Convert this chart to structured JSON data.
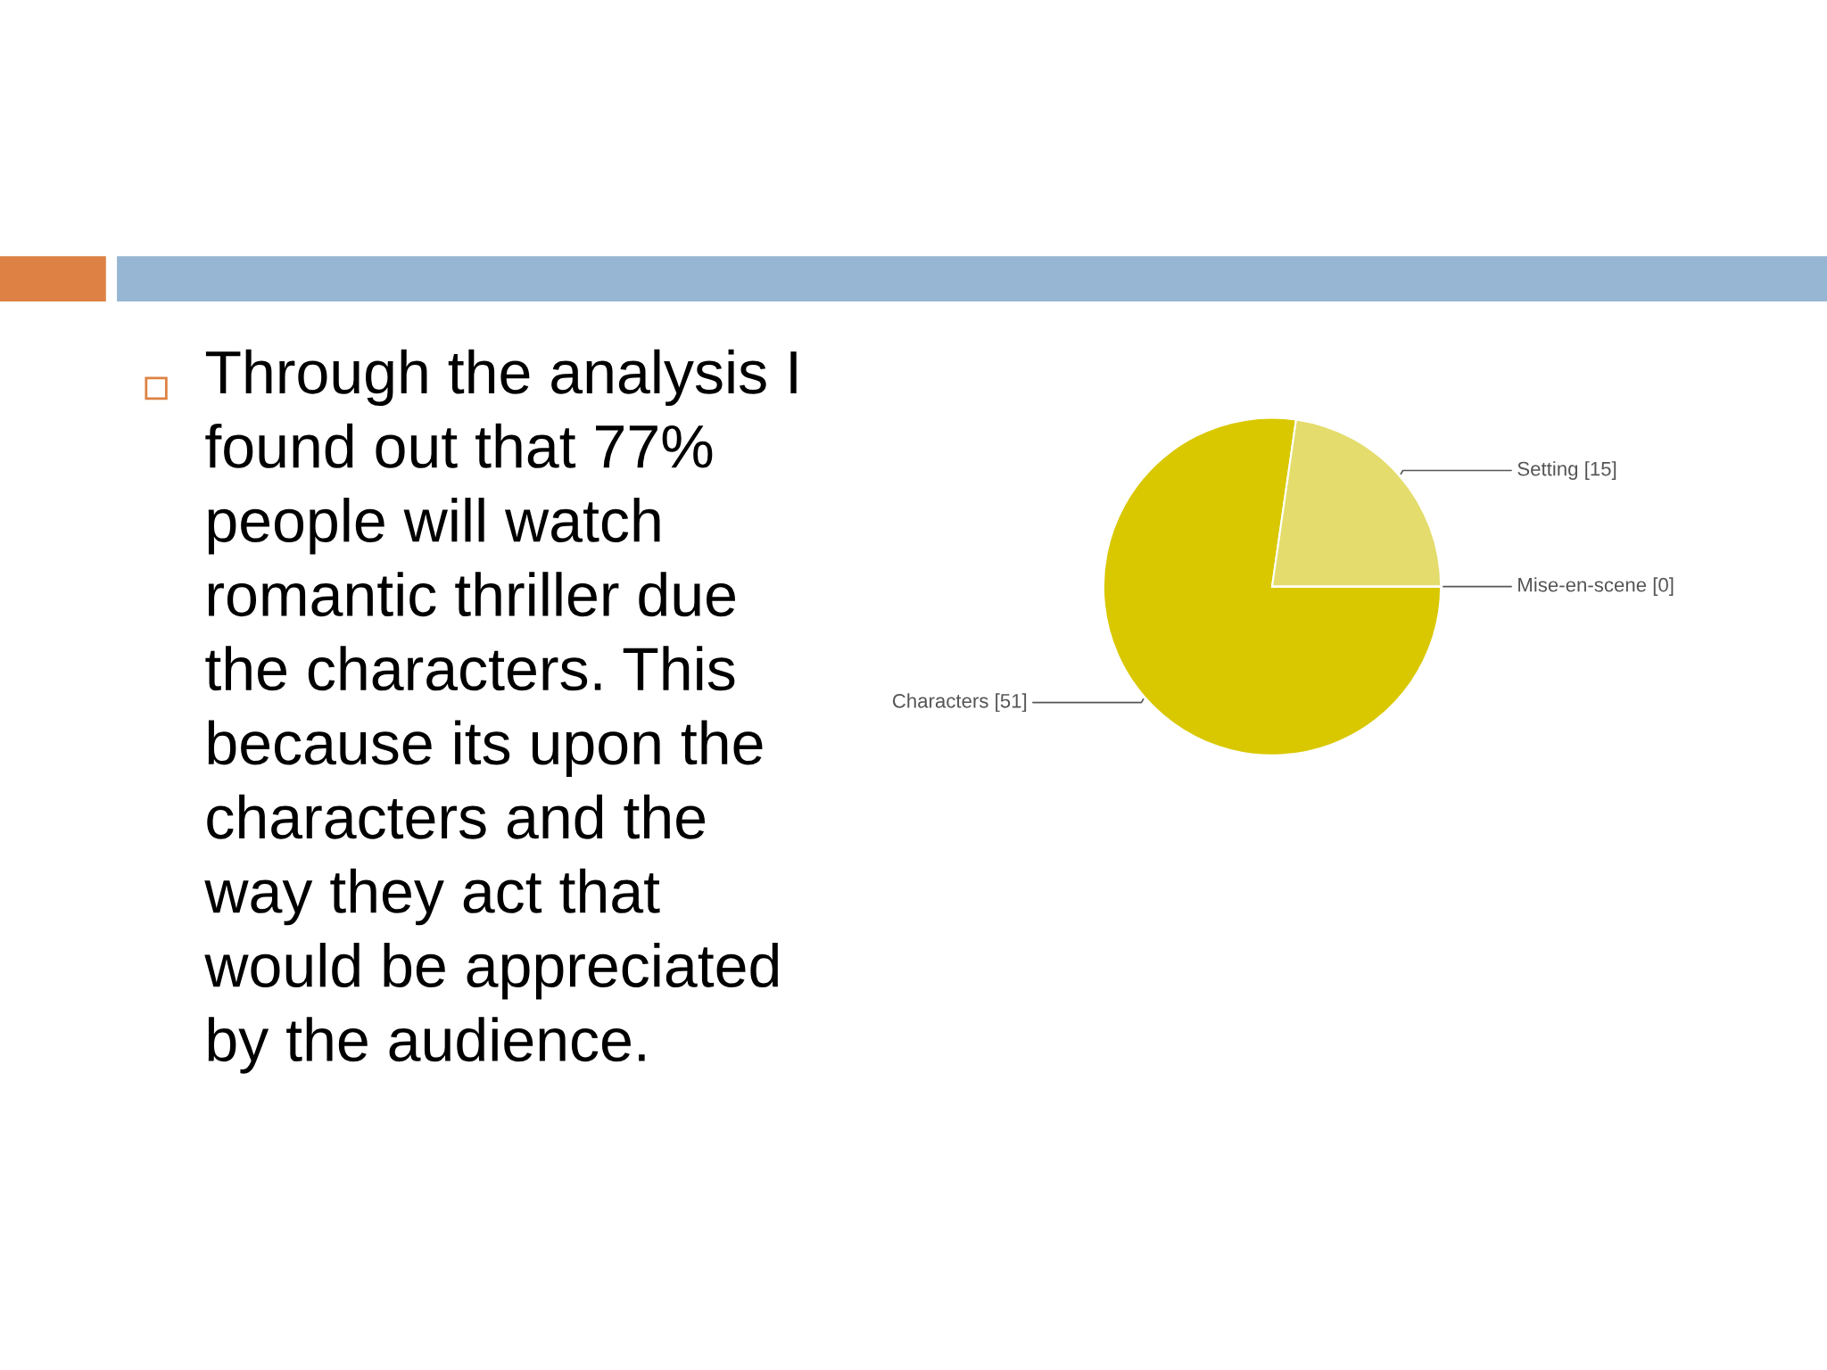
{
  "chart_data": {
    "type": "pie",
    "categories": [
      "Characters [51]",
      "Setting [15]",
      "Mise-en-scene [0]"
    ],
    "values": [
      51,
      15,
      0
    ],
    "colors": [
      "#d9c800",
      "#e4dc6c",
      "#efe9a0"
    ],
    "annotations": [
      "Through the analysis I\nfound out that 77%\npeople will watch\nromantic thriller due\nthe characters. This\nbecause its upon the\ncharacters and the\nway they act that\nwould be appreciated\nby the audience."
    ]
  }
}
